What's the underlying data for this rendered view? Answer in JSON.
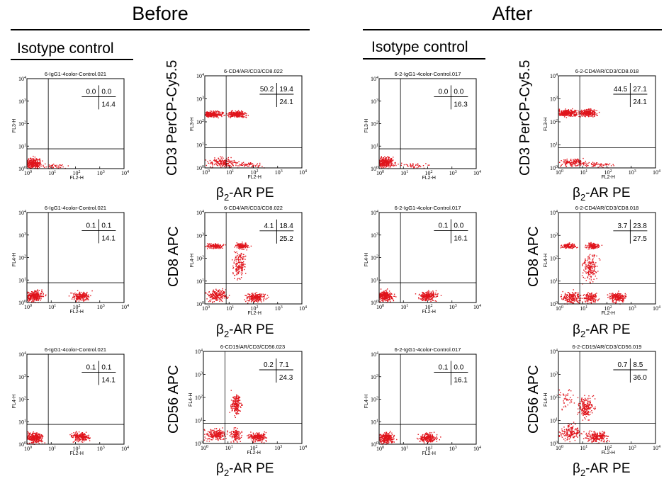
{
  "headers": {
    "before": "Before",
    "after": "After"
  },
  "isotype_label": "Isotype control",
  "x_marker_label": "FL2-H",
  "x_label": {
    "prefix": "β",
    "sub": "2",
    "suffix": "-AR PE"
  },
  "colors": {
    "dots": "#e0141c",
    "lines": "#000000"
  },
  "chart_data": [
    {
      "type": "scatter",
      "id": "b-iso-1",
      "title": "6-IgG1-4color-Control.021",
      "xlabel": "FL2-H",
      "ylabel": "FL3-H",
      "axis_title": "",
      "xlim": [
        1,
        10000
      ],
      "ylim": [
        1,
        10000
      ],
      "scale": "log",
      "quadrants": {
        "ul": "0.0",
        "ur": "0.0",
        "lr": "14.4"
      }
    },
    {
      "type": "scatter",
      "id": "b-cd3",
      "title": "6-CD4/AR/CD3/CD8.022",
      "xlabel": "FL2-H",
      "ylabel": "FL3-H",
      "axis_title": "CD3 PerCP-Cy5.5",
      "xlim": [
        1,
        10000
      ],
      "ylim": [
        1,
        10000
      ],
      "scale": "log",
      "quadrants": {
        "ul": "50.2",
        "ur": "19.4",
        "lr": "24.1"
      }
    },
    {
      "type": "scatter",
      "id": "a-iso-1",
      "title": "6-2-IgG1-4color-Control.017",
      "xlabel": "FL2-H",
      "ylabel": "FL3-H",
      "axis_title": "",
      "xlim": [
        1,
        10000
      ],
      "ylim": [
        1,
        10000
      ],
      "scale": "log",
      "quadrants": {
        "ul": "0.0",
        "ur": "0.0",
        "lr": "16.3"
      }
    },
    {
      "type": "scatter",
      "id": "a-cd3",
      "title": "6-2-CD4/AR/CD3/CD8.018",
      "xlabel": "FL2-H",
      "ylabel": "FL3-H",
      "axis_title": "CD3 PerCP-Cy5.5",
      "xlim": [
        1,
        10000
      ],
      "ylim": [
        1,
        10000
      ],
      "scale": "log",
      "quadrants": {
        "ul": "44.5",
        "ur": "27.1",
        "lr": "24.1"
      }
    },
    {
      "type": "scatter",
      "id": "b-iso-2",
      "title": "6-IgG1-4color-Control.021",
      "xlabel": "FL2-H",
      "ylabel": "FL4-H",
      "axis_title": "",
      "xlim": [
        1,
        10000
      ],
      "ylim": [
        1,
        10000
      ],
      "scale": "log",
      "quadrants": {
        "ul": "0.1",
        "ur": "0.1",
        "lr": "14.1"
      }
    },
    {
      "type": "scatter",
      "id": "b-cd8",
      "title": "6-CD4/AR/CD3/CD8.022",
      "xlabel": "FL2-H",
      "ylabel": "FL4-H",
      "axis_title": "CD8 APC",
      "xlim": [
        1,
        10000
      ],
      "ylim": [
        1,
        10000
      ],
      "scale": "log",
      "quadrants": {
        "ul": "4.1",
        "ur": "18.4",
        "lr": "25.2"
      }
    },
    {
      "type": "scatter",
      "id": "a-iso-2",
      "title": "6-2-IgG1-4color-Control.017",
      "xlabel": "FL2-H",
      "ylabel": "FL4-H",
      "axis_title": "",
      "xlim": [
        1,
        10000
      ],
      "ylim": [
        1,
        10000
      ],
      "scale": "log",
      "quadrants": {
        "ul": "0.1",
        "ur": "0.0",
        "lr": "16.1"
      }
    },
    {
      "type": "scatter",
      "id": "a-cd8",
      "title": "6-2-CD4/AR/CD3/CD8.018",
      "xlabel": "FL2-H",
      "ylabel": "FL4-H",
      "axis_title": "CD8 APC",
      "xlim": [
        1,
        10000
      ],
      "ylim": [
        1,
        10000
      ],
      "scale": "log",
      "quadrants": {
        "ul": "3.7",
        "ur": "23.8",
        "lr": "27.5"
      }
    },
    {
      "type": "scatter",
      "id": "b-iso-3",
      "title": "6-IgG1-4color-Control.021",
      "xlabel": "FL2-H",
      "ylabel": "FL4-H",
      "axis_title": "",
      "xlim": [
        1,
        10000
      ],
      "ylim": [
        1,
        10000
      ],
      "scale": "log",
      "quadrants": {
        "ul": "0.1",
        "ur": "0.1",
        "lr": "14.1"
      }
    },
    {
      "type": "scatter",
      "id": "b-cd56",
      "title": "6-CD19/AR/CD3/CD56.023",
      "xlabel": "FL2-H",
      "ylabel": "FL4-H",
      "axis_title": "CD56 APC",
      "xlim": [
        1,
        10000
      ],
      "ylim": [
        1,
        10000
      ],
      "scale": "log",
      "quadrants": {
        "ul": "0.2",
        "ur": "7.1",
        "lr": "24.3"
      }
    },
    {
      "type": "scatter",
      "id": "a-iso-3",
      "title": "6-2-IgG1-4color-Control.017",
      "xlabel": "FL2-H",
      "ylabel": "FL4-H",
      "axis_title": "",
      "xlim": [
        1,
        10000
      ],
      "ylim": [
        1,
        10000
      ],
      "scale": "log",
      "quadrants": {
        "ul": "0.1",
        "ur": "0.0",
        "lr": "16.1"
      }
    },
    {
      "type": "scatter",
      "id": "a-cd56",
      "title": "6-2-CD19/AR/CD3/CD56.019",
      "xlabel": "FL2-H",
      "ylabel": "FL4-H",
      "axis_title": "CD56 APC",
      "xlim": [
        1,
        10000
      ],
      "ylim": [
        1,
        10000
      ],
      "scale": "log",
      "quadrants": {
        "ul": "0.7",
        "ur": "8.5",
        "lr": "36.0"
      }
    }
  ]
}
